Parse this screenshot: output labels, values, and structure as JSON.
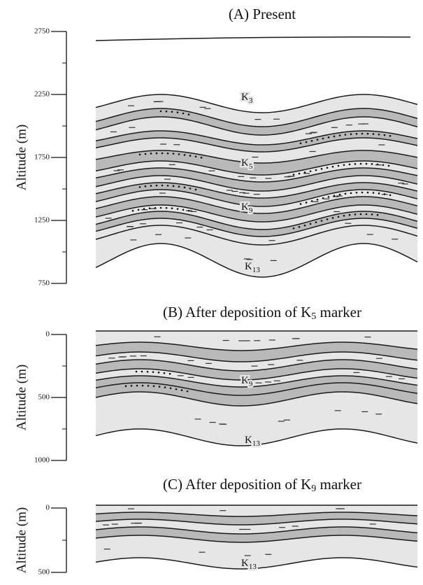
{
  "panels": [
    {
      "title": {
        "text": "(A) Present"
      },
      "y_label": "Altitude (m)",
      "ylim": [
        750,
        2750
      ],
      "yticks": [
        2750,
        2250,
        1750,
        1250,
        750
      ],
      "markers": [
        {
          "letter": "K",
          "sub": "3"
        },
        {
          "letter": "K",
          "sub": "5"
        },
        {
          "letter": "K",
          "sub": "9"
        },
        {
          "letter": "K",
          "sub": "13"
        }
      ]
    },
    {
      "title": {
        "text": "(B) After deposition of K",
        "sub": "5",
        "after": " marker"
      },
      "y_label": "Altitude (m)",
      "ylim": [
        0,
        1000
      ],
      "yticks": [
        0,
        500,
        1000
      ],
      "markers": [
        {
          "letter": "K",
          "sub": "9"
        },
        {
          "letter": "K",
          "sub": "13"
        }
      ]
    },
    {
      "title": {
        "text": "(C) After deposition of K",
        "sub": "9",
        "after": " marker"
      },
      "y_label": "Altitude (m)",
      "ylim": [
        0,
        500
      ],
      "yticks": [
        0,
        500
      ],
      "markers": [
        {
          "letter": "K",
          "sub": "13"
        }
      ]
    }
  ]
}
